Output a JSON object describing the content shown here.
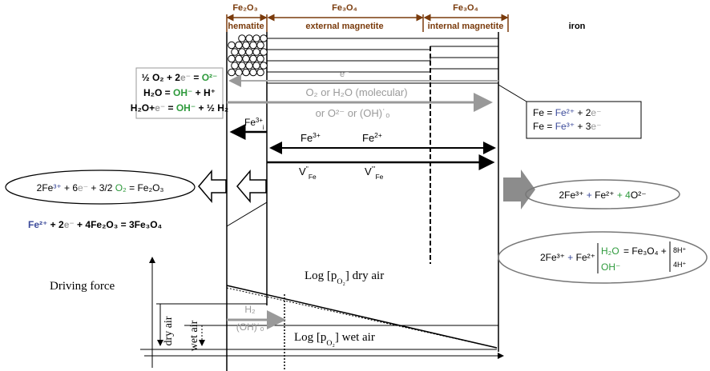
{
  "header": {
    "hematite_formula": "Fe₂O₃",
    "hematite": "hematite",
    "external_formula": "Fe₃O₄",
    "external": "external magnetite",
    "internal_formula": "Fe₃O₄",
    "internal": "internal magnetite",
    "iron": "iron"
  },
  "left_box": [
    [
      "½ O₂ + 2",
      "e⁻",
      " = ",
      "O²⁻"
    ],
    [
      "H₂O = ",
      "OH⁻",
      " + H⁺"
    ],
    [
      "H₂O+",
      "e⁻",
      " = ",
      "OH⁻",
      " + ½ H₂"
    ]
  ],
  "right_box": [
    [
      "Fe = ",
      "Fe²⁺",
      " + 2",
      "e⁻"
    ],
    [
      "Fe = ",
      "Fe³⁺",
      " + 3",
      "e⁻"
    ]
  ],
  "transport": {
    "electron": "e⁻",
    "gas_1": "O₂ or H₂O (molecular)",
    "gas_2": "or O²⁻ or (OH)˙ₒ",
    "fe_interstitial": [
      "Fe",
      "3+",
      "i"
    ],
    "fe3": [
      "Fe",
      "3+"
    ],
    "fe2": [
      "Fe",
      "2+"
    ],
    "vacancy_2": [
      "V",
      "''",
      "Fe"
    ],
    "vacancy_3": [
      "V",
      "'''",
      "Fe"
    ]
  },
  "reactions": {
    "hematite_formation": [
      "2Fe",
      "³⁺",
      " + 6",
      "e⁻",
      " + 3/2 ",
      "O₂",
      " = Fe₂O₃"
    ],
    "magnetite_from_hematite": [
      "Fe²⁺",
      " + 2",
      "e⁻",
      " + 4Fe₂O₃ = 3Fe₃O₄"
    ],
    "magnetite_dry": [
      "2Fe³⁺",
      " + ",
      "Fe²⁺",
      " + 4",
      "O²⁻",
      " = Fe₃O₄"
    ],
    "magnetite_wet": {
      "left": [
        "2Fe³⁺",
        " + ",
        "Fe²⁺",
        " + 4"
      ],
      "water": "H₂O",
      "hydroxide": "OH⁻",
      "right": "= Fe₃O₄ +",
      "protons_1": "8H⁺",
      "protons_2": "4H⁺"
    }
  },
  "graph": {
    "y_label": "Driving force",
    "dry_air": "dry air",
    "wet_air": "wet air",
    "log_dry": [
      "Log [p",
      "O₂",
      "] dry air"
    ],
    "log_wet": [
      "Log [p",
      "O₂",
      "] wet air"
    ],
    "h2": "H₂",
    "oh": "(OH)˙ₒ"
  }
}
